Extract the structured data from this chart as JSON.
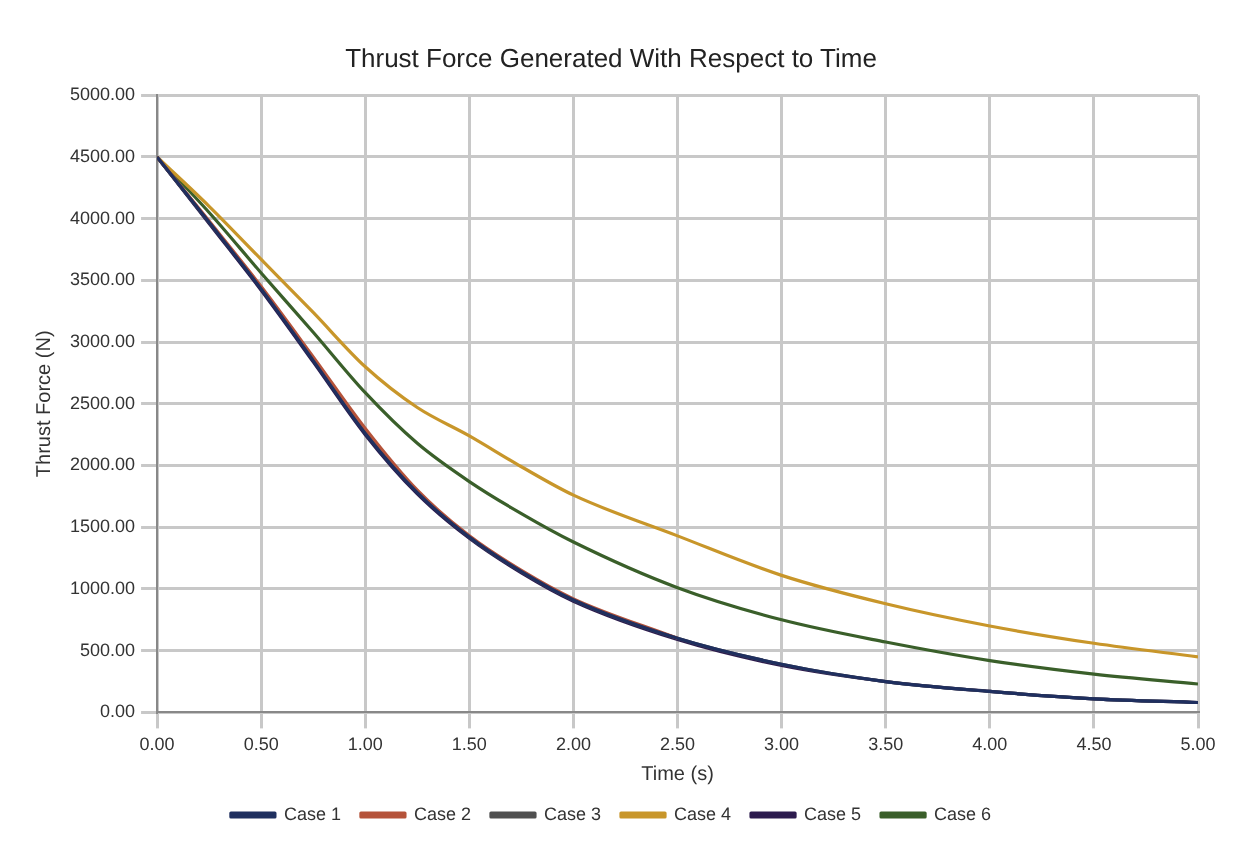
{
  "chart_data": {
    "type": "line",
    "title": "Thrust Force Generated With Respect to Time",
    "xlabel": "Time (s)",
    "ylabel": "Thrust Force (N)",
    "x": [
      0,
      0.25,
      0.5,
      0.75,
      1,
      1.25,
      1.5,
      1.75,
      2,
      2.5,
      3,
      3.5,
      4,
      4.5,
      5
    ],
    "series": [
      {
        "name": "Case 1",
        "color": "#1f2f5f",
        "values": [
          4500,
          3970,
          3430,
          2850,
          2260,
          1780,
          1420,
          1140,
          910,
          600,
          390,
          250,
          170,
          110,
          80
        ]
      },
      {
        "name": "Case 2",
        "color": "#b5533a",
        "values": [
          4500,
          3980,
          3450,
          2880,
          2300,
          1800,
          1430,
          1150,
          920,
          600,
          null,
          null,
          null,
          null,
          null
        ]
      },
      {
        "name": "Case 3",
        "color": "#505050",
        "values": [
          4500,
          3970,
          3440,
          2860,
          2270,
          1790,
          1420,
          1140,
          910,
          600,
          390,
          250,
          170,
          110,
          80
        ]
      },
      {
        "name": "Case 4",
        "color": "#c8962a",
        "values": [
          4500,
          4100,
          3670,
          3240,
          2800,
          2470,
          2240,
          1990,
          1760,
          1430,
          1110,
          880,
          700,
          560,
          450
        ]
      },
      {
        "name": "Case 5",
        "color": "#2d1b4e",
        "values": [
          4500,
          3960,
          3420,
          2840,
          2250,
          1770,
          1410,
          1130,
          900,
          590,
          380,
          250,
          170,
          110,
          80
        ]
      },
      {
        "name": "Case 6",
        "color": "#3a5f2a",
        "values": [
          4500,
          4050,
          3560,
          3080,
          2590,
          2180,
          1870,
          1610,
          1380,
          1010,
          750,
          570,
          420,
          310,
          230
        ]
      }
    ],
    "xlim": [
      0,
      5
    ],
    "xticks": [
      {
        "value": 0,
        "label": "0.00"
      },
      {
        "value": 0.5,
        "label": "0.50"
      },
      {
        "value": 1,
        "label": "1.00"
      },
      {
        "value": 1.5,
        "label": "1.50"
      },
      {
        "value": 2,
        "label": "2.00"
      },
      {
        "value": 2.5,
        "label": "2.50"
      },
      {
        "value": 3,
        "label": "3.00"
      },
      {
        "value": 3.5,
        "label": "3.50"
      },
      {
        "value": 4,
        "label": "4.00"
      },
      {
        "value": 4.5,
        "label": "4.50"
      },
      {
        "value": 5,
        "label": "5.00"
      }
    ],
    "ylim": [
      0,
      5000
    ],
    "yticks": [
      {
        "value": 0,
        "label": "0.00"
      },
      {
        "value": 500,
        "label": "500.00"
      },
      {
        "value": 1000,
        "label": "1000.00"
      },
      {
        "value": 1500,
        "label": "1500.00"
      },
      {
        "value": 2000,
        "label": "2000.00"
      },
      {
        "value": 2500,
        "label": "2500.00"
      },
      {
        "value": 3000,
        "label": "3000.00"
      },
      {
        "value": 3500,
        "label": "3500.00"
      },
      {
        "value": 4000,
        "label": "4000.00"
      },
      {
        "value": 4500,
        "label": "4500.00"
      },
      {
        "value": 5000,
        "label": "5000.00"
      }
    ],
    "grid": true,
    "legend": "bottom",
    "marker": "none",
    "line_style": "solid"
  }
}
